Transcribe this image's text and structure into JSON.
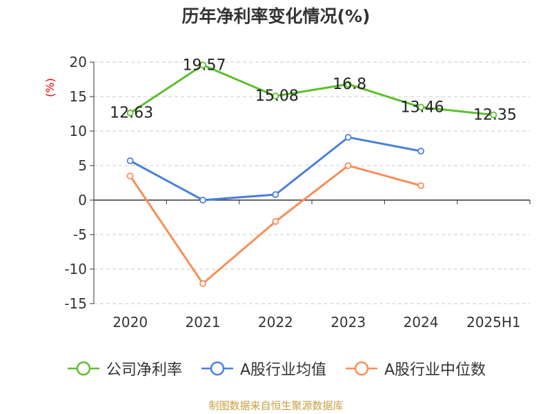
{
  "chart_data": {
    "type": "line",
    "title": "历年净利率变化情况(%)",
    "ylabel": "(%)",
    "categories": [
      "2020",
      "2021",
      "2022",
      "2023",
      "2024",
      "2025H1"
    ],
    "ylim": [
      -15,
      20
    ],
    "yticks": [
      20,
      15,
      10,
      5,
      0,
      -5,
      -10,
      -15
    ],
    "ytick_labels": [
      "20",
      "15",
      "10",
      "5",
      "0",
      "-5",
      "-10",
      "-15"
    ],
    "grid": true,
    "legend": "bottom",
    "series": [
      {
        "name": "公司净利率",
        "color": "#5bbf2b",
        "values": [
          12.63,
          19.57,
          15.08,
          16.8,
          13.46,
          12.35
        ],
        "labels": [
          "12.63",
          "19.57",
          "15.08",
          "16.8",
          "13.46",
          "12.35"
        ]
      },
      {
        "name": "A股行业均值",
        "color": "#4a7fdc",
        "values": [
          5.7,
          0.0,
          0.8,
          9.1,
          7.1,
          null
        ]
      },
      {
        "name": "A股行业中位数",
        "color": "#f78e58",
        "values": [
          3.5,
          -12.1,
          -3.1,
          5.0,
          2.1,
          null
        ]
      }
    ]
  },
  "source": "制图数据来自恒生聚源数据库",
  "ylabel_color": "#e00000"
}
